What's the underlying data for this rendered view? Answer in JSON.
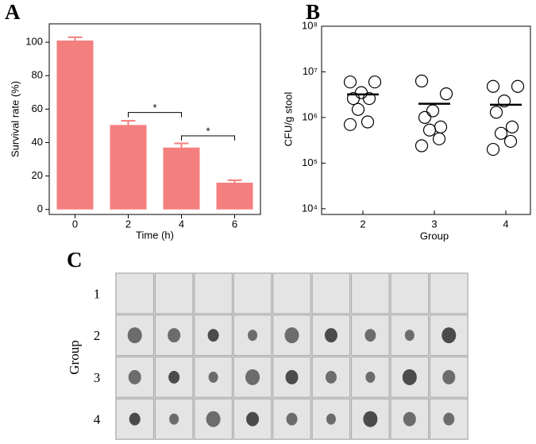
{
  "chart_data": [
    {
      "type": "bar",
      "panel_label": "A",
      "xlabel": "Time (h)",
      "ylabel": "Survival rate (%)",
      "categories": [
        "0",
        "2",
        "4",
        "6"
      ],
      "values": [
        101,
        50.5,
        37,
        16
      ],
      "errors": [
        2,
        2.5,
        2.5,
        1.5
      ],
      "color": "#f47f7f",
      "ylim": [
        -3,
        111
      ],
      "yticks": [
        0,
        20,
        40,
        60,
        80,
        100
      ],
      "annotations": [
        {
          "text": "*",
          "x": [
            "2",
            "4"
          ],
          "y": 58
        },
        {
          "text": "*",
          "x": [
            "4",
            "6"
          ],
          "y": 44
        }
      ]
    },
    {
      "type": "scatter",
      "panel_label": "B",
      "xlabel": "Group",
      "ylabel": "CFU/g stool",
      "categories": [
        "2",
        "3",
        "4"
      ],
      "log_y": true,
      "values": [
        [
          6000000,
          6000000,
          3500000,
          2600000,
          2600000,
          1500000,
          800000,
          700000
        ],
        [
          6300000,
          3300000,
          1400000,
          1000000,
          620000,
          530000,
          340000,
          240000
        ],
        [
          4800000,
          4800000,
          2300000,
          1300000,
          620000,
          450000,
          300000,
          200000
        ]
      ],
      "means": [
        3200000,
        2000000,
        1900000
      ],
      "color": "#000000",
      "ylim": [
        7500,
        100000000
      ],
      "yticks": [
        {
          "value": 10000,
          "label": "10⁴"
        },
        {
          "value": 100000,
          "label": "10⁵"
        },
        {
          "value": 1000000,
          "label": "10⁶"
        },
        {
          "value": 10000000,
          "label": "10⁷"
        },
        {
          "value": 100000000,
          "label": "10⁸"
        }
      ]
    }
  ],
  "blot": {
    "panel_label": "C",
    "ylabel": "Group",
    "rows": [
      "1",
      "2",
      "3",
      "4"
    ]
  }
}
